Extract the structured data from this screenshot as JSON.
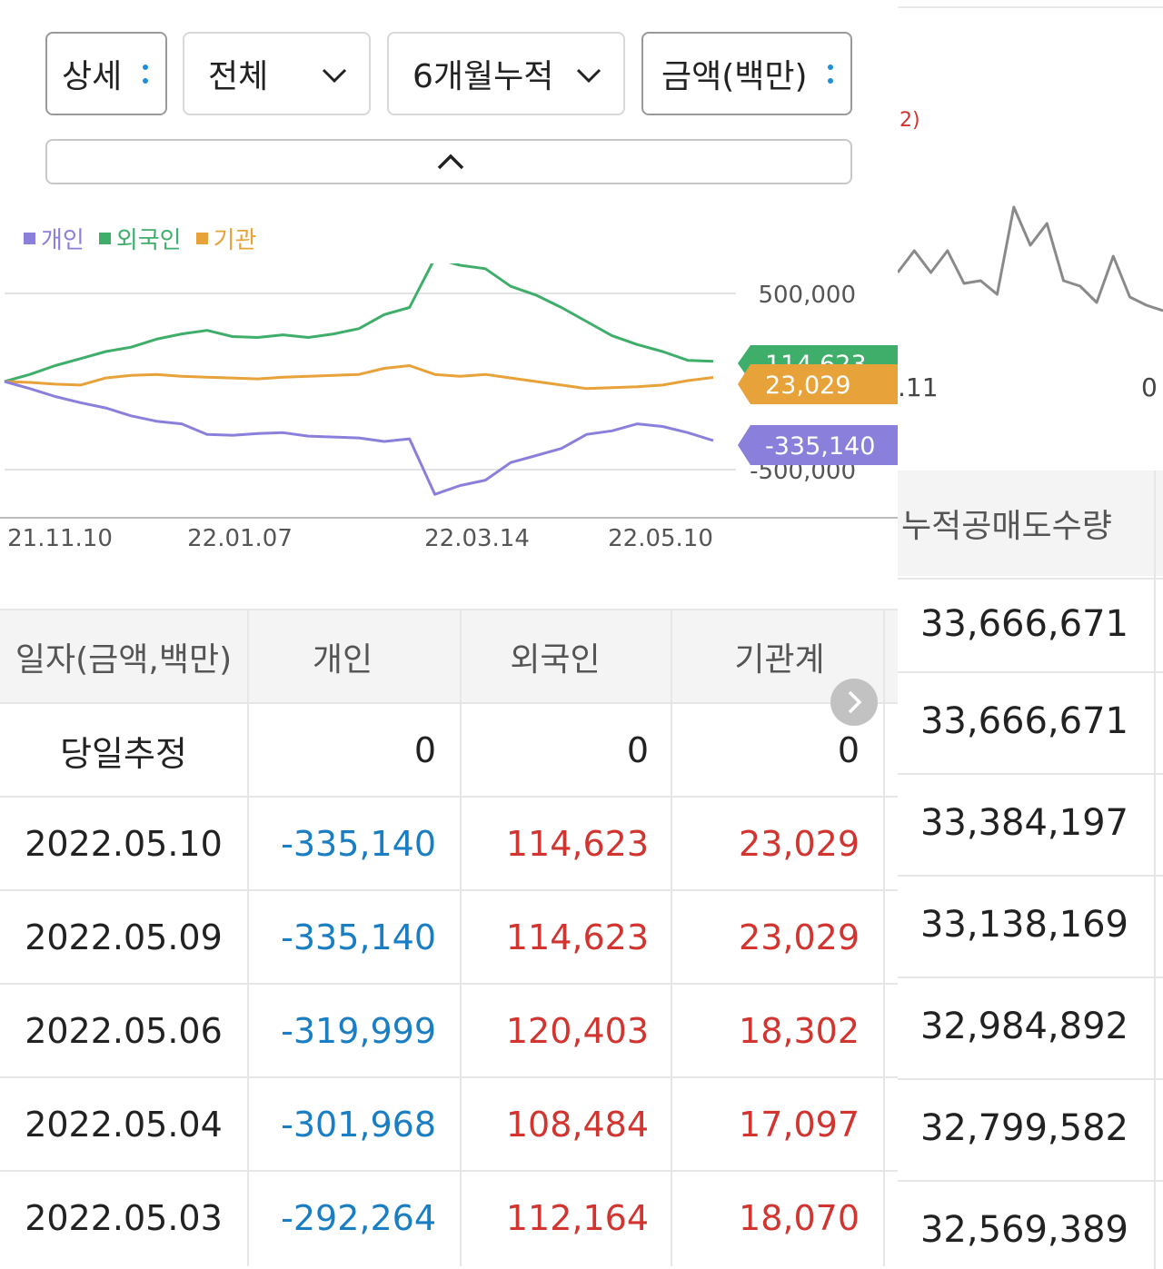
{
  "controls": {
    "view": "상세",
    "scope": "전체",
    "period": "6개월누적",
    "unit": "금액(백만)"
  },
  "legend": [
    {
      "label": "개인",
      "color": "#8b7fdc"
    },
    {
      "label": "외국인",
      "color": "#3fae6b"
    },
    {
      "label": "기관",
      "color": "#e8a23a"
    }
  ],
  "chart_data": {
    "type": "line",
    "x_ticks": [
      "21.11.10",
      "22.01.07",
      "22.03.14",
      "22.05.10"
    ],
    "y_ticks": [
      "500,000",
      "-500,000"
    ],
    "ylim": [
      -700000,
      800000
    ],
    "series": [
      {
        "name": "개인",
        "color": "#8b7fdc",
        "end_label": "-335,140",
        "values": [
          0,
          -40000,
          -85000,
          -120000,
          -150000,
          -195000,
          -225000,
          -240000,
          -300000,
          -305000,
          -295000,
          -290000,
          -310000,
          -315000,
          -320000,
          -340000,
          -325000,
          -640000,
          -590000,
          -560000,
          -460000,
          -420000,
          -380000,
          -300000,
          -280000,
          -240000,
          -255000,
          -290000,
          -335140
        ]
      },
      {
        "name": "외국인",
        "color": "#3fae6b",
        "end_label": "114,623",
        "values": [
          0,
          40000,
          90000,
          130000,
          170000,
          195000,
          240000,
          270000,
          290000,
          255000,
          250000,
          265000,
          250000,
          270000,
          300000,
          380000,
          420000,
          700000,
          660000,
          640000,
          540000,
          490000,
          420000,
          340000,
          260000,
          210000,
          170000,
          120000,
          114623
        ]
      },
      {
        "name": "기관",
        "color": "#e8a23a",
        "end_label": "23,029",
        "values": [
          0,
          -5000,
          -15000,
          -20000,
          20000,
          35000,
          40000,
          30000,
          25000,
          20000,
          15000,
          25000,
          30000,
          35000,
          40000,
          75000,
          90000,
          40000,
          30000,
          40000,
          20000,
          0,
          -20000,
          -40000,
          -35000,
          -30000,
          -20000,
          5000,
          23029
        ]
      }
    ]
  },
  "table": {
    "headers": [
      "일자(금액,백만)",
      "개인",
      "외국인",
      "기관계"
    ],
    "rows": [
      [
        "당일추정",
        "0",
        "0",
        "0"
      ],
      [
        "2022.05.10",
        "-335,140",
        "114,623",
        "23,029"
      ],
      [
        "2022.05.09",
        "-335,140",
        "114,623",
        "23,029"
      ],
      [
        "2022.05.06",
        "-319,999",
        "120,403",
        "18,302"
      ],
      [
        "2022.05.04",
        "-301,968",
        "108,484",
        "17,097"
      ],
      [
        "2022.05.03",
        "-292,264",
        "112,164",
        "18,070"
      ]
    ]
  },
  "right_panel": {
    "fragment_label": "2)",
    "x_tick_left": ".11",
    "x_tick_right": "0",
    "line_values": [
      300,
      340,
      300,
      340,
      280,
      285,
      260,
      420,
      350,
      390,
      285,
      275,
      245,
      330,
      255,
      240,
      230
    ],
    "header": "누적공매도수량",
    "values": [
      "33,666,671",
      "33,666,671",
      "33,384,197",
      "33,138,169",
      "32,984,892",
      "32,799,582",
      "32,569,389"
    ]
  }
}
